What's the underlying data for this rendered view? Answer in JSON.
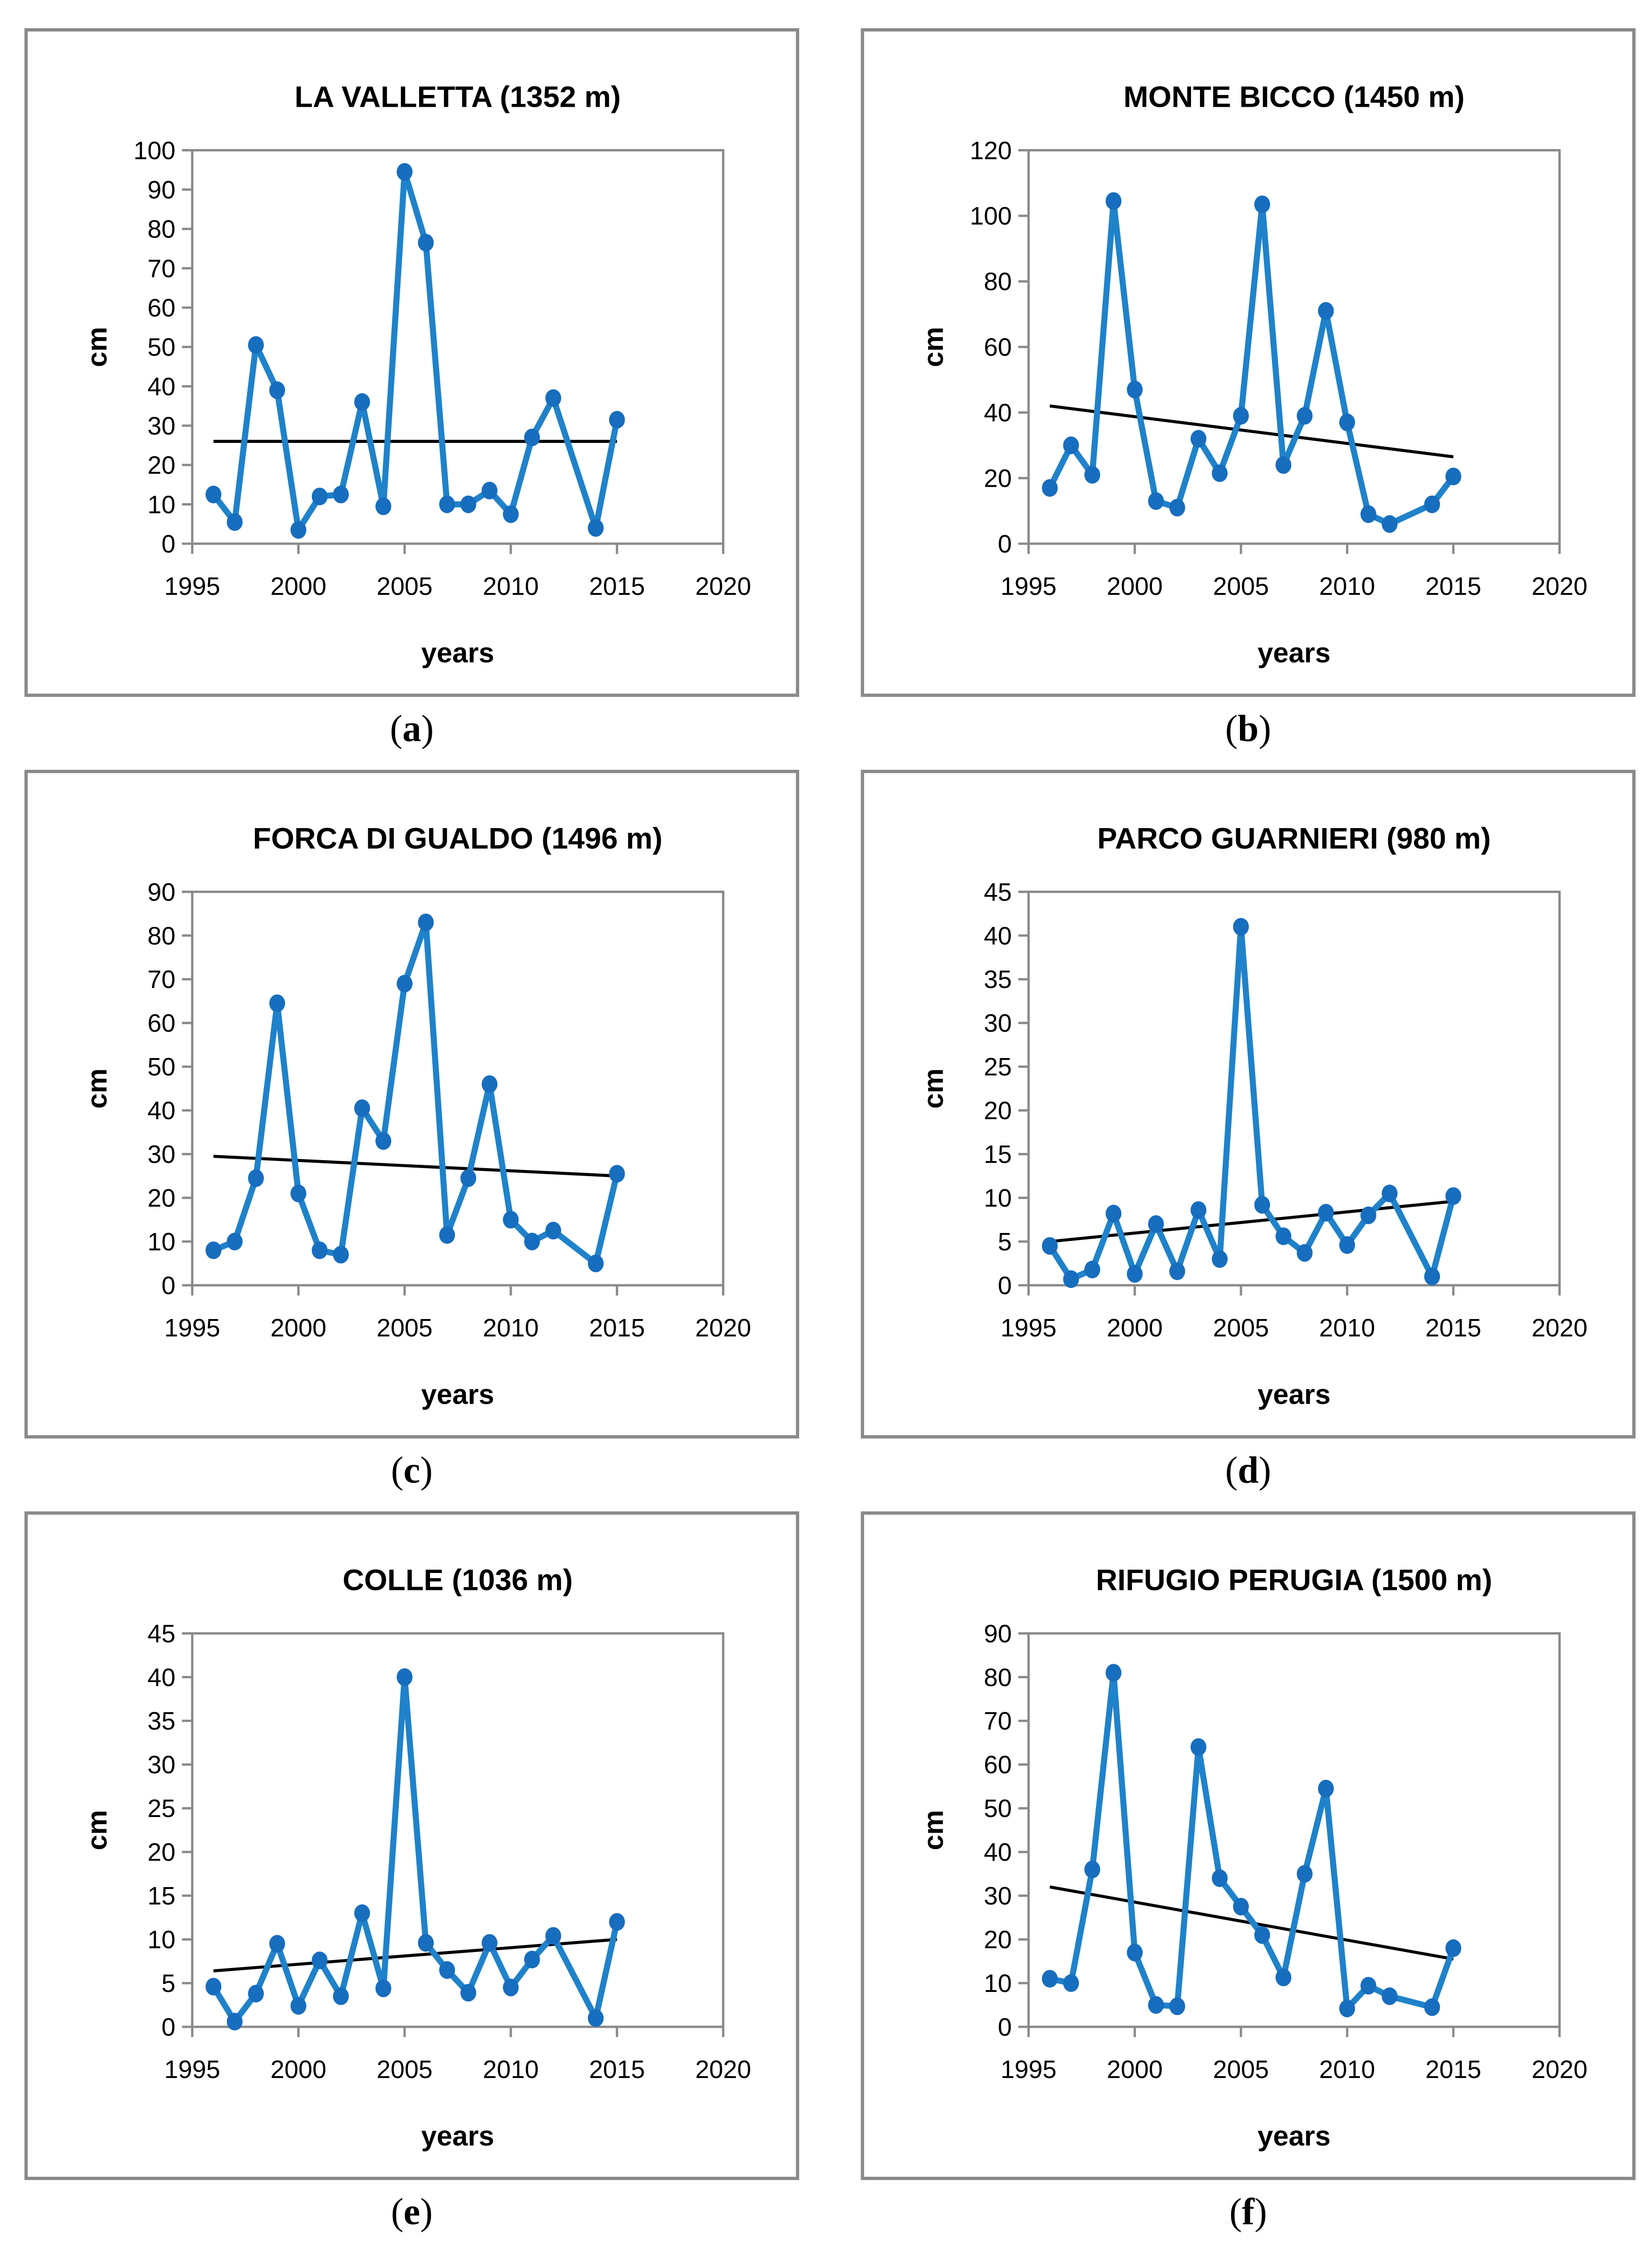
{
  "figure": {
    "colors": {
      "line": "#1f82ca",
      "marker": "#176dbe",
      "trend": "#000000",
      "axis": "#8a8a8a",
      "text": "#000000",
      "background": "#ffffff"
    },
    "panel_labels": [
      {
        "open": "(",
        "letter": "a",
        "close": ")"
      },
      {
        "open": "(",
        "letter": "b",
        "close": ")"
      },
      {
        "open": "(",
        "letter": "c",
        "close": ")"
      },
      {
        "open": "(",
        "letter": "d",
        "close": ")"
      },
      {
        "open": "(",
        "letter": "e",
        "close": ")"
      },
      {
        "open": "(",
        "letter": "f",
        "close": ")"
      }
    ]
  },
  "chart_data": [
    {
      "type": "line",
      "panel": "a",
      "title": "LA VALLETTA (1352 m)",
      "xlabel": "years",
      "ylabel": "cm",
      "xlim": [
        1995,
        2020
      ],
      "xticks": [
        1995,
        2000,
        2005,
        2010,
        2015,
        2020
      ],
      "ylim": [
        0,
        100
      ],
      "ytick_step": 10,
      "grid": false,
      "legend": "none",
      "x": [
        1996,
        1997,
        1998,
        1999,
        2000,
        2001,
        2002,
        2003,
        2004,
        2005,
        2006,
        2007,
        2008,
        2009,
        2010,
        2011,
        2012,
        2014,
        2015
      ],
      "y": [
        12.5,
        5.5,
        50.5,
        39,
        3.5,
        12,
        12.5,
        36,
        9.5,
        94.5,
        76.5,
        10,
        10,
        13.5,
        7.5,
        27,
        37,
        4,
        31.5
      ],
      "trend": {
        "x": [
          1996,
          2015
        ],
        "y": [
          26,
          26
        ]
      }
    },
    {
      "type": "line",
      "panel": "b",
      "title": "MONTE BICCO (1450 m)",
      "xlabel": "years",
      "ylabel": "cm",
      "xlim": [
        1995,
        2020
      ],
      "xticks": [
        1995,
        2000,
        2005,
        2010,
        2015,
        2020
      ],
      "ylim": [
        0,
        120
      ],
      "ytick_step": 20,
      "grid": false,
      "legend": "none",
      "x": [
        1996,
        1997,
        1998,
        1999,
        2000,
        2001,
        2002,
        2003,
        2004,
        2005,
        2006,
        2007,
        2008,
        2009,
        2010,
        2011,
        2012,
        2014,
        2015
      ],
      "y": [
        17,
        30,
        21,
        104.5,
        47,
        13,
        11,
        32,
        21.5,
        39,
        103.5,
        24,
        39,
        71,
        37,
        9,
        6,
        12,
        20.5
      ],
      "trend": {
        "x": [
          1996,
          2015
        ],
        "y": [
          42,
          26.5
        ]
      }
    },
    {
      "type": "line",
      "panel": "c",
      "title": "FORCA DI GUALDO (1496 m)",
      "xlabel": "years",
      "ylabel": "cm",
      "xlim": [
        1995,
        2020
      ],
      "xticks": [
        1995,
        2000,
        2005,
        2010,
        2015,
        2020
      ],
      "ylim": [
        0,
        90
      ],
      "ytick_step": 10,
      "grid": false,
      "legend": "none",
      "x": [
        1996,
        1997,
        1998,
        1999,
        2000,
        2001,
        2002,
        2003,
        2004,
        2005,
        2006,
        2007,
        2008,
        2009,
        2010,
        2011,
        2012,
        2014,
        2015
      ],
      "y": [
        8,
        10,
        24.5,
        64.5,
        21,
        8,
        7,
        40.5,
        33,
        69,
        83,
        11.5,
        24.5,
        46,
        15,
        10,
        12.5,
        5,
        25.5
      ],
      "trend": {
        "x": [
          1996,
          2015
        ],
        "y": [
          29.5,
          25
        ]
      }
    },
    {
      "type": "line",
      "panel": "d",
      "title": "PARCO GUARNIERI (980 m)",
      "xlabel": "years",
      "ylabel": "cm",
      "xlim": [
        1995,
        2020
      ],
      "xticks": [
        1995,
        2000,
        2005,
        2010,
        2015,
        2020
      ],
      "ylim": [
        0,
        45
      ],
      "ytick_step": 5,
      "grid": false,
      "legend": "none",
      "x": [
        1996,
        1997,
        1998,
        1999,
        2000,
        2001,
        2002,
        2003,
        2004,
        2005,
        2006,
        2007,
        2008,
        2009,
        2010,
        2011,
        2012,
        2014,
        2015
      ],
      "y": [
        4.5,
        0.7,
        1.8,
        8.2,
        1.3,
        7,
        1.6,
        8.6,
        3,
        41,
        9.2,
        5.6,
        3.7,
        8.3,
        4.6,
        8,
        10.5,
        1,
        10.2
      ],
      "trend": {
        "x": [
          1996,
          2015
        ],
        "y": [
          5,
          9.6
        ]
      }
    },
    {
      "type": "line",
      "panel": "e",
      "title": "COLLE (1036 m)",
      "xlabel": "years",
      "ylabel": "cm",
      "xlim": [
        1995,
        2020
      ],
      "xticks": [
        1995,
        2000,
        2005,
        2010,
        2015,
        2020
      ],
      "ylim": [
        0,
        45
      ],
      "ytick_step": 5,
      "grid": false,
      "legend": "none",
      "x": [
        1996,
        1997,
        1998,
        1999,
        2000,
        2001,
        2002,
        2003,
        2004,
        2005,
        2006,
        2007,
        2008,
        2009,
        2010,
        2011,
        2012,
        2014,
        2015
      ],
      "y": [
        4.6,
        0.6,
        3.8,
        9.5,
        2.4,
        7.6,
        3.5,
        13,
        4.4,
        40,
        9.6,
        6.5,
        3.9,
        9.6,
        4.5,
        7.7,
        10.4,
        1,
        12
      ],
      "trend": {
        "x": [
          1996,
          2015
        ],
        "y": [
          6.4,
          10
        ]
      }
    },
    {
      "type": "line",
      "panel": "f",
      "title": "RIFUGIO PERUGIA (1500 m)",
      "xlabel": "years",
      "ylabel": "cm",
      "xlim": [
        1995,
        2020
      ],
      "xticks": [
        1995,
        2000,
        2005,
        2010,
        2015,
        2020
      ],
      "ylim": [
        0,
        90
      ],
      "ytick_step": 10,
      "grid": false,
      "legend": "none",
      "x": [
        1996,
        1997,
        1998,
        1999,
        2000,
        2001,
        2002,
        2003,
        2004,
        2005,
        2006,
        2007,
        2008,
        2009,
        2010,
        2011,
        2012,
        2014,
        2015
      ],
      "y": [
        11,
        10,
        36,
        81,
        17,
        5,
        4.7,
        64,
        34,
        27.5,
        21,
        11.3,
        35,
        54.5,
        4.2,
        9.4,
        7,
        4.5,
        18
      ],
      "trend": {
        "x": [
          1996,
          2015
        ],
        "y": [
          32,
          15.5
        ]
      }
    }
  ]
}
